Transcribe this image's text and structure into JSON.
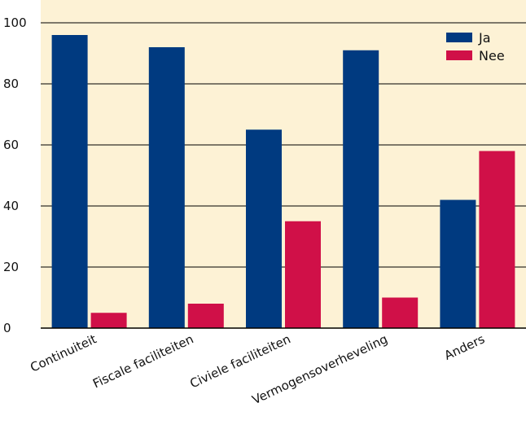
{
  "colors": {
    "ja": "#003a80",
    "nee": "#d01048",
    "background": "#fdf2d5",
    "title": "#003a80"
  },
  "chart_data": {
    "type": "bar",
    "title": "",
    "categories": [
      "Continuiteit",
      "Fiscale faciliteiten",
      "Civiele faciliteiten",
      "Vermogensoverheveling",
      "Anders"
    ],
    "series": [
      {
        "name": "Ja",
        "values": [
          96,
          92,
          65,
          91,
          42
        ]
      },
      {
        "name": "Nee",
        "values": [
          5,
          8,
          35,
          10,
          58
        ]
      }
    ],
    "xlabel": "",
    "ylabel": "",
    "ylim": [
      0,
      100
    ],
    "yticks": [
      "0",
      "20",
      "40",
      "60",
      "80",
      "100"
    ],
    "grid": true,
    "legend_position": "top-right"
  }
}
